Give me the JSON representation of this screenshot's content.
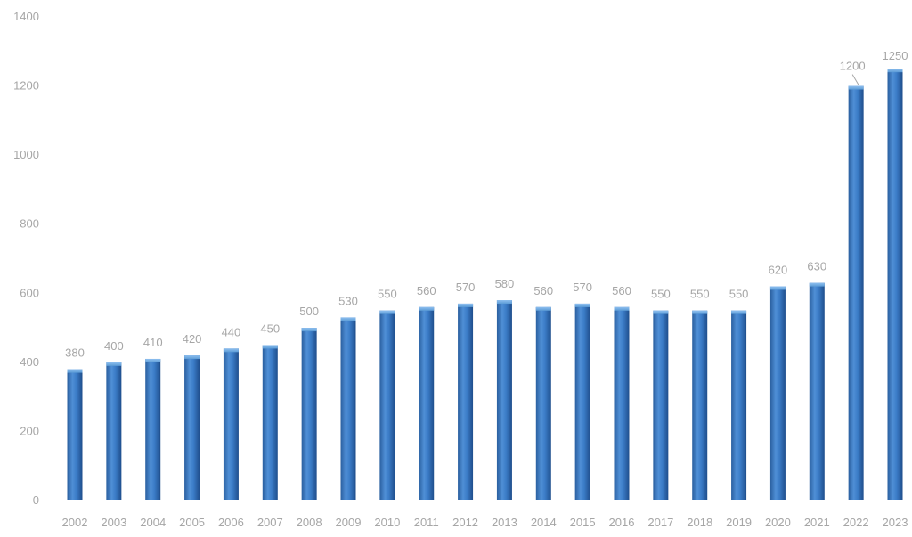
{
  "chart_data": {
    "type": "bar",
    "title": "",
    "xlabel": "",
    "ylabel": "",
    "categories": [
      "2002",
      "2003",
      "2004",
      "2005",
      "2006",
      "2007",
      "2008",
      "2009",
      "2010",
      "2011",
      "2012",
      "2013",
      "2014",
      "2015",
      "2016",
      "2017",
      "2018",
      "2019",
      "2020",
      "2021",
      "2022",
      "2023"
    ],
    "values": [
      380,
      400,
      410,
      420,
      440,
      450,
      500,
      530,
      550,
      560,
      570,
      580,
      560,
      570,
      560,
      550,
      550,
      550,
      620,
      630,
      1200,
      1250
    ],
    "data_labels": [
      "380",
      "400",
      "410",
      "420",
      "440",
      "450",
      "500",
      "530",
      "550",
      "560",
      "570",
      "580",
      "560",
      "570",
      "560",
      "550",
      "550",
      "550",
      "620",
      "630",
      "1200",
      "1250"
    ],
    "ylim": [
      0,
      1400
    ],
    "yticks": [
      "0",
      "200",
      "400",
      "600",
      "800",
      "1000",
      "1200",
      "1400"
    ],
    "grid": false,
    "legend": "none",
    "colors": {
      "bar_light": "#5b9bd5",
      "bar_mid": "#2e6fb8",
      "bar_dark": "#1f4e8c",
      "text": "#a6a6a6"
    }
  }
}
